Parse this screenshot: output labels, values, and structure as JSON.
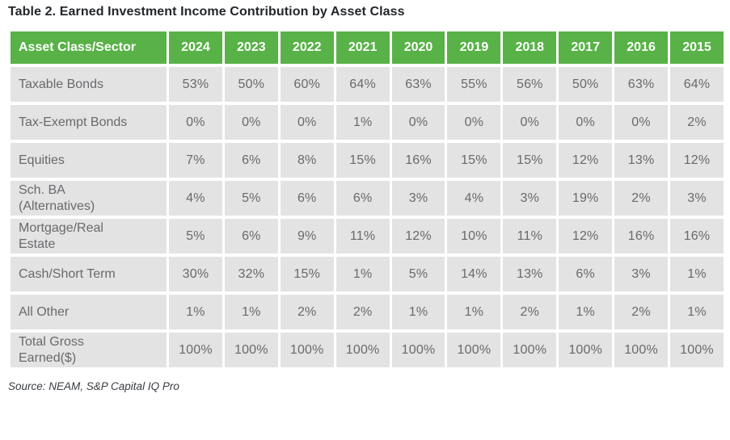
{
  "title": "Table 2. Earned Investment Income Contribution by Asset Class",
  "source": "Source: NEAM, S&P Capital IQ Pro",
  "colors": {
    "header_green": "#58b247",
    "header_text": "#ffffff",
    "cell_gray": "#e4e3e3",
    "body_text": "#67696c",
    "title_text": "#23262b"
  },
  "table": {
    "columns": [
      "Asset Class/Sector",
      "2024",
      "2023",
      "2022",
      "2021",
      "2020",
      "2019",
      "2018",
      "2017",
      "2016",
      "2015"
    ],
    "rows": [
      {
        "label": "Taxable Bonds",
        "values": [
          "53%",
          "50%",
          "60%",
          "64%",
          "63%",
          "55%",
          "56%",
          "50%",
          "63%",
          "64%"
        ]
      },
      {
        "label": "Tax-Exempt Bonds",
        "values": [
          "0%",
          "0%",
          "0%",
          "1%",
          "0%",
          "0%",
          "0%",
          "0%",
          "0%",
          "2%"
        ]
      },
      {
        "label": "Equities",
        "values": [
          "7%",
          "6%",
          "8%",
          "15%",
          "16%",
          "15%",
          "15%",
          "12%",
          "13%",
          "12%"
        ]
      },
      {
        "label": "Sch. BA\n(Alternatives)",
        "values": [
          "4%",
          "5%",
          "6%",
          "6%",
          "3%",
          "4%",
          "3%",
          "19%",
          "2%",
          "3%"
        ]
      },
      {
        "label": "Mortgage/Real\nEstate",
        "values": [
          "5%",
          "6%",
          "9%",
          "11%",
          "12%",
          "10%",
          "11%",
          "12%",
          "16%",
          "16%"
        ]
      },
      {
        "label": "Cash/Short Term",
        "values": [
          "30%",
          "32%",
          "15%",
          "1%",
          "5%",
          "14%",
          "13%",
          "6%",
          "3%",
          "1%"
        ]
      },
      {
        "label": "All Other",
        "values": [
          "1%",
          "1%",
          "2%",
          "2%",
          "1%",
          "1%",
          "2%",
          "1%",
          "2%",
          "1%"
        ]
      },
      {
        "label": "Total Gross\nEarned($)",
        "values": [
          "100%",
          "100%",
          "100%",
          "100%",
          "100%",
          "100%",
          "100%",
          "100%",
          "100%",
          "100%"
        ]
      }
    ]
  },
  "chart_data": {
    "type": "table",
    "title": "Table 2. Earned Investment Income Contribution by Asset Class",
    "categories": [
      "2024",
      "2023",
      "2022",
      "2021",
      "2020",
      "2019",
      "2018",
      "2017",
      "2016",
      "2015"
    ],
    "unit": "%",
    "series": [
      {
        "name": "Taxable Bonds",
        "values": [
          53,
          50,
          60,
          64,
          63,
          55,
          56,
          50,
          63,
          64
        ]
      },
      {
        "name": "Tax-Exempt Bonds",
        "values": [
          0,
          0,
          0,
          1,
          0,
          0,
          0,
          0,
          0,
          2
        ]
      },
      {
        "name": "Equities",
        "values": [
          7,
          6,
          8,
          15,
          16,
          15,
          15,
          12,
          13,
          12
        ]
      },
      {
        "name": "Sch. BA (Alternatives)",
        "values": [
          4,
          5,
          6,
          6,
          3,
          4,
          3,
          19,
          2,
          3
        ]
      },
      {
        "name": "Mortgage/Real Estate",
        "values": [
          5,
          6,
          9,
          11,
          12,
          10,
          11,
          12,
          16,
          16
        ]
      },
      {
        "name": "Cash/Short Term",
        "values": [
          30,
          32,
          15,
          1,
          5,
          14,
          13,
          6,
          3,
          1
        ]
      },
      {
        "name": "All Other",
        "values": [
          1,
          1,
          2,
          2,
          1,
          1,
          2,
          1,
          2,
          1
        ]
      },
      {
        "name": "Total Gross Earned($)",
        "values": [
          100,
          100,
          100,
          100,
          100,
          100,
          100,
          100,
          100,
          100
        ]
      }
    ],
    "source": "Source: NEAM, S&P Capital IQ Pro"
  }
}
